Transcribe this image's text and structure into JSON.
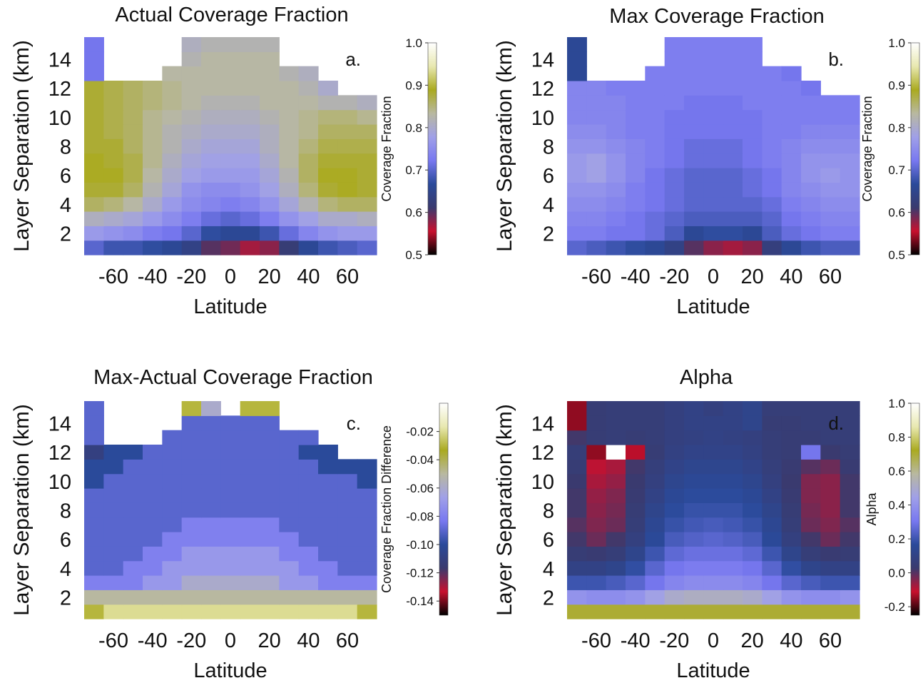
{
  "figure": {
    "ylabel": "Layer Separation (km)",
    "xlabel": "Latitude",
    "xticks": [
      "-60",
      "-40",
      "-20",
      "0",
      "20",
      "40",
      "60"
    ],
    "yticks": [
      "2",
      "4",
      "6",
      "8",
      "10",
      "12",
      "14"
    ]
  },
  "colors": {
    "missing": "#ffffff",
    "colormap": [
      "#000000",
      "#c8102e",
      "#3a3a6e",
      "#2a4a9a",
      "#7878f0",
      "#a0a0e8",
      "#b8b8a0",
      "#aaaa20",
      "#e8e8b0",
      "#ffffff"
    ]
  },
  "chart_data": [
    {
      "type": "heatmap",
      "panel": "a",
      "title": "Actual Coverage Fraction",
      "panel_label": "a.",
      "xlabel": "Latitude",
      "ylabel": "Layer Separation (km)",
      "colorbar_label": "Coverage Fraction",
      "colorbar_ticks": [
        "1.0",
        "0.9",
        "0.8",
        "0.7",
        "0.6",
        "0.5"
      ],
      "colorbar_range": [
        0.5,
        1.0
      ],
      "x": [
        -70,
        -60,
        -50,
        -40,
        -30,
        -20,
        -10,
        0,
        10,
        20,
        30,
        40,
        50,
        60,
        70
      ],
      "y": [
        1,
        2,
        3,
        4,
        5,
        6,
        7,
        8,
        9,
        10,
        11,
        12,
        13,
        14,
        15
      ],
      "z": [
        [
          0.7,
          0.68,
          0.68,
          0.67,
          0.66,
          0.64,
          0.6,
          0.59,
          0.57,
          0.58,
          0.62,
          0.66,
          0.68,
          0.69,
          0.7
        ],
        [
          0.77,
          0.76,
          0.75,
          0.73,
          0.72,
          0.7,
          0.67,
          0.66,
          0.66,
          0.68,
          0.71,
          0.74,
          0.76,
          0.77,
          0.77
        ],
        [
          0.81,
          0.8,
          0.79,
          0.77,
          0.75,
          0.73,
          0.71,
          0.7,
          0.71,
          0.73,
          0.76,
          0.78,
          0.8,
          0.8,
          0.81
        ],
        [
          0.86,
          0.85,
          0.83,
          0.8,
          0.77,
          0.75,
          0.74,
          0.73,
          0.74,
          0.76,
          0.79,
          0.82,
          0.85,
          0.86,
          0.86
        ],
        [
          0.88,
          0.88,
          0.86,
          0.82,
          0.79,
          0.76,
          0.75,
          0.75,
          0.76,
          0.78,
          0.81,
          0.85,
          0.88,
          0.89,
          0.88
        ],
        [
          0.89,
          0.89,
          0.87,
          0.83,
          0.8,
          0.78,
          0.77,
          0.77,
          0.77,
          0.79,
          0.82,
          0.86,
          0.89,
          0.89,
          0.88
        ],
        [
          0.89,
          0.88,
          0.87,
          0.84,
          0.81,
          0.79,
          0.78,
          0.78,
          0.78,
          0.8,
          0.83,
          0.86,
          0.88,
          0.88,
          0.88
        ],
        [
          0.88,
          0.88,
          0.86,
          0.84,
          0.82,
          0.8,
          0.79,
          0.79,
          0.79,
          0.81,
          0.83,
          0.85,
          0.87,
          0.87,
          0.87
        ],
        [
          0.88,
          0.87,
          0.86,
          0.84,
          0.82,
          0.81,
          0.8,
          0.8,
          0.8,
          0.81,
          0.83,
          0.84,
          0.86,
          0.86,
          0.86
        ],
        [
          0.88,
          0.87,
          0.86,
          0.84,
          0.83,
          0.82,
          0.81,
          0.81,
          0.81,
          0.82,
          0.83,
          0.84,
          0.85,
          0.85,
          0.84
        ],
        [
          0.88,
          0.87,
          0.86,
          0.85,
          0.84,
          0.83,
          0.82,
          0.82,
          0.82,
          0.83,
          0.83,
          0.83,
          0.82,
          0.82,
          0.81
        ],
        [
          0.88,
          0.87,
          0.86,
          0.85,
          0.84,
          0.83,
          0.83,
          0.83,
          0.83,
          0.83,
          0.83,
          0.82,
          0.8,
          null,
          null
        ],
        [
          0.72,
          null,
          null,
          null,
          0.83,
          0.83,
          0.83,
          0.83,
          0.83,
          0.83,
          0.82,
          0.81,
          null,
          null,
          null
        ],
        [
          0.72,
          null,
          null,
          null,
          null,
          0.82,
          0.83,
          0.83,
          0.83,
          0.83,
          null,
          null,
          null,
          null,
          null
        ],
        [
          0.72,
          null,
          null,
          null,
          null,
          0.81,
          0.82,
          0.82,
          0.82,
          0.82,
          null,
          null,
          null,
          null,
          null
        ]
      ]
    },
    {
      "type": "heatmap",
      "panel": "b",
      "title": "Max Coverage Fraction",
      "panel_label": "b.",
      "xlabel": "Latitude",
      "ylabel": "Layer Separation (km)",
      "colorbar_label": "Coverage Fraction",
      "colorbar_ticks": [
        "1.0",
        "0.9",
        "0.8",
        "0.7",
        "0.6",
        "0.5"
      ],
      "colorbar_range": [
        0.5,
        1.0
      ],
      "x": [
        -70,
        -60,
        -50,
        -40,
        -30,
        -20,
        -10,
        0,
        10,
        20,
        30,
        40,
        50,
        60,
        70
      ],
      "y": [
        1,
        2,
        3,
        4,
        5,
        6,
        7,
        8,
        9,
        10,
        11,
        12,
        13,
        14,
        15
      ],
      "z": [
        [
          0.7,
          0.69,
          0.68,
          0.67,
          0.66,
          0.64,
          0.6,
          0.58,
          0.57,
          0.58,
          0.63,
          0.66,
          0.68,
          0.69,
          0.69
        ],
        [
          0.73,
          0.73,
          0.72,
          0.72,
          0.71,
          0.69,
          0.66,
          0.67,
          0.67,
          0.66,
          0.69,
          0.71,
          0.72,
          0.73,
          0.73
        ],
        [
          0.74,
          0.74,
          0.73,
          0.72,
          0.71,
          0.7,
          0.69,
          0.69,
          0.69,
          0.69,
          0.7,
          0.72,
          0.73,
          0.74,
          0.74
        ],
        [
          0.75,
          0.75,
          0.74,
          0.73,
          0.72,
          0.71,
          0.7,
          0.7,
          0.7,
          0.7,
          0.71,
          0.73,
          0.74,
          0.75,
          0.75
        ],
        [
          0.76,
          0.76,
          0.75,
          0.73,
          0.72,
          0.71,
          0.7,
          0.7,
          0.7,
          0.71,
          0.72,
          0.74,
          0.75,
          0.76,
          0.76
        ],
        [
          0.77,
          0.78,
          0.76,
          0.74,
          0.72,
          0.71,
          0.7,
          0.7,
          0.7,
          0.71,
          0.72,
          0.74,
          0.76,
          0.77,
          0.76
        ],
        [
          0.77,
          0.78,
          0.76,
          0.74,
          0.73,
          0.72,
          0.71,
          0.71,
          0.71,
          0.72,
          0.73,
          0.74,
          0.76,
          0.76,
          0.76
        ],
        [
          0.76,
          0.76,
          0.75,
          0.74,
          0.73,
          0.72,
          0.71,
          0.71,
          0.71,
          0.72,
          0.73,
          0.74,
          0.75,
          0.75,
          0.75
        ],
        [
          0.75,
          0.75,
          0.74,
          0.73,
          0.73,
          0.72,
          0.72,
          0.72,
          0.72,
          0.72,
          0.73,
          0.73,
          0.74,
          0.74,
          0.74
        ],
        [
          0.74,
          0.74,
          0.74,
          0.73,
          0.73,
          0.72,
          0.72,
          0.72,
          0.72,
          0.72,
          0.73,
          0.73,
          0.73,
          0.73,
          0.73
        ],
        [
          0.74,
          0.74,
          0.74,
          0.73,
          0.73,
          0.73,
          0.72,
          0.72,
          0.72,
          0.73,
          0.73,
          0.73,
          0.73,
          0.73,
          0.73
        ],
        [
          0.74,
          0.74,
          0.73,
          0.73,
          0.73,
          0.73,
          0.73,
          0.73,
          0.73,
          0.73,
          0.73,
          0.73,
          0.72,
          null,
          null
        ],
        [
          0.66,
          null,
          null,
          null,
          0.73,
          0.73,
          0.73,
          0.73,
          0.73,
          0.73,
          0.73,
          0.72,
          null,
          null,
          null
        ],
        [
          0.66,
          null,
          null,
          null,
          null,
          0.73,
          0.73,
          0.73,
          0.73,
          0.73,
          null,
          null,
          null,
          null,
          null
        ],
        [
          0.66,
          null,
          null,
          null,
          null,
          0.73,
          0.73,
          0.73,
          0.73,
          0.73,
          null,
          null,
          null,
          null,
          null
        ]
      ]
    },
    {
      "type": "heatmap",
      "panel": "c",
      "title": "Max-Actual Coverage Fraction",
      "panel_label": "c.",
      "xlabel": "Latitude",
      "ylabel": "Layer Separation (km)",
      "colorbar_label": "Coverage Fraction Difference",
      "colorbar_ticks": [
        "-0.02",
        "-0.04",
        "-0.06",
        "-0.08",
        "-0.10",
        "-0.12",
        "-0.14"
      ],
      "colorbar_range": [
        -0.15,
        0.0
      ],
      "x": [
        -70,
        -60,
        -50,
        -40,
        -30,
        -20,
        -10,
        0,
        10,
        20,
        30,
        40,
        50,
        60,
        70
      ],
      "y": [
        1,
        2,
        3,
        4,
        5,
        6,
        7,
        8,
        9,
        10,
        11,
        12,
        13,
        14,
        15
      ],
      "z": [
        [
          -0.03,
          -0.02,
          -0.02,
          -0.02,
          -0.02,
          -0.02,
          -0.02,
          -0.02,
          -0.02,
          -0.02,
          -0.02,
          -0.02,
          -0.02,
          -0.02,
          -0.03
        ],
        [
          -0.05,
          -0.05,
          -0.05,
          -0.05,
          -0.05,
          -0.05,
          -0.05,
          -0.05,
          -0.05,
          -0.05,
          -0.05,
          -0.05,
          -0.05,
          -0.05,
          -0.05
        ],
        [
          -0.08,
          -0.08,
          -0.08,
          -0.07,
          -0.07,
          -0.06,
          -0.06,
          -0.06,
          -0.06,
          -0.06,
          -0.07,
          -0.07,
          -0.08,
          -0.08,
          -0.08
        ],
        [
          -0.09,
          -0.09,
          -0.08,
          -0.08,
          -0.07,
          -0.07,
          -0.07,
          -0.07,
          -0.07,
          -0.07,
          -0.07,
          -0.08,
          -0.08,
          -0.09,
          -0.09
        ],
        [
          -0.09,
          -0.09,
          -0.09,
          -0.08,
          -0.08,
          -0.07,
          -0.07,
          -0.07,
          -0.07,
          -0.07,
          -0.08,
          -0.08,
          -0.09,
          -0.09,
          -0.09
        ],
        [
          -0.09,
          -0.09,
          -0.09,
          -0.09,
          -0.08,
          -0.08,
          -0.08,
          -0.08,
          -0.08,
          -0.08,
          -0.08,
          -0.09,
          -0.09,
          -0.09,
          -0.09
        ],
        [
          -0.09,
          -0.09,
          -0.09,
          -0.09,
          -0.09,
          -0.08,
          -0.08,
          -0.08,
          -0.08,
          -0.08,
          -0.09,
          -0.09,
          -0.09,
          -0.09,
          -0.09
        ],
        [
          -0.09,
          -0.09,
          -0.09,
          -0.09,
          -0.09,
          -0.09,
          -0.09,
          -0.09,
          -0.09,
          -0.09,
          -0.09,
          -0.09,
          -0.09,
          -0.09,
          -0.09
        ],
        [
          -0.09,
          -0.09,
          -0.09,
          -0.09,
          -0.09,
          -0.09,
          -0.09,
          -0.09,
          -0.09,
          -0.09,
          -0.09,
          -0.09,
          -0.09,
          -0.09,
          -0.09
        ],
        [
          -0.1,
          -0.09,
          -0.09,
          -0.09,
          -0.09,
          -0.09,
          -0.09,
          -0.09,
          -0.09,
          -0.09,
          -0.09,
          -0.09,
          -0.09,
          -0.09,
          -0.1
        ],
        [
          -0.1,
          -0.1,
          -0.09,
          -0.09,
          -0.09,
          -0.09,
          -0.09,
          -0.09,
          -0.09,
          -0.09,
          -0.09,
          -0.09,
          -0.1,
          -0.1,
          -0.1
        ],
        [
          -0.11,
          -0.1,
          -0.1,
          -0.09,
          -0.09,
          -0.09,
          -0.09,
          -0.09,
          -0.09,
          -0.09,
          -0.09,
          -0.1,
          -0.1,
          null,
          null
        ],
        [
          -0.09,
          null,
          null,
          null,
          -0.09,
          -0.09,
          -0.09,
          -0.09,
          -0.09,
          -0.09,
          -0.09,
          -0.09,
          null,
          null,
          null
        ],
        [
          -0.09,
          null,
          null,
          null,
          null,
          -0.09,
          -0.09,
          -0.09,
          -0.09,
          -0.09,
          null,
          null,
          null,
          null,
          null
        ],
        [
          -0.09,
          null,
          null,
          null,
          null,
          -0.03,
          -0.06,
          null,
          -0.03,
          -0.03,
          null,
          null,
          null,
          null,
          null
        ]
      ]
    },
    {
      "type": "heatmap",
      "panel": "d",
      "title": "Alpha",
      "panel_label": "d.",
      "xlabel": "Latitude",
      "ylabel": "Layer Separation (km)",
      "colorbar_label": "Alpha",
      "colorbar_ticks": [
        "1.0",
        "0.8",
        "0.6",
        "0.4",
        "0.2",
        "0.0",
        "-0.2"
      ],
      "colorbar_range": [
        -0.25,
        1.0
      ],
      "x": [
        -70,
        -60,
        -50,
        -40,
        -30,
        -20,
        -10,
        0,
        10,
        20,
        30,
        40,
        50,
        60,
        70
      ],
      "y": [
        1,
        2,
        3,
        4,
        5,
        6,
        7,
        8,
        9,
        10,
        11,
        12,
        13,
        14,
        15
      ],
      "z": [
        [
          0.7,
          0.7,
          0.7,
          0.7,
          0.7,
          0.7,
          0.7,
          0.7,
          0.7,
          0.7,
          0.7,
          0.7,
          0.7,
          0.7,
          0.7
        ],
        [
          0.4,
          0.38,
          0.38,
          0.4,
          0.45,
          0.5,
          0.52,
          0.52,
          0.52,
          0.5,
          0.45,
          0.4,
          0.38,
          0.38,
          0.4
        ],
        [
          0.2,
          0.2,
          0.22,
          0.25,
          0.3,
          0.35,
          0.37,
          0.37,
          0.37,
          0.35,
          0.3,
          0.25,
          0.22,
          0.2,
          0.2
        ],
        [
          0.1,
          0.1,
          0.12,
          0.18,
          0.25,
          0.3,
          0.32,
          0.32,
          0.32,
          0.3,
          0.25,
          0.18,
          0.12,
          0.1,
          0.1
        ],
        [
          0.05,
          0.04,
          0.06,
          0.12,
          0.2,
          0.26,
          0.28,
          0.28,
          0.28,
          0.26,
          0.2,
          0.12,
          0.06,
          0.04,
          0.05
        ],
        [
          0.02,
          -0.02,
          0.02,
          0.08,
          0.16,
          0.22,
          0.24,
          0.25,
          0.24,
          0.22,
          0.16,
          0.08,
          0.02,
          -0.02,
          0.02
        ],
        [
          0.0,
          -0.04,
          -0.02,
          0.06,
          0.14,
          0.19,
          0.21,
          0.22,
          0.21,
          0.19,
          0.14,
          0.06,
          -0.02,
          -0.04,
          0.0
        ],
        [
          0.02,
          -0.05,
          -0.03,
          0.05,
          0.12,
          0.17,
          0.19,
          0.19,
          0.19,
          0.17,
          0.12,
          0.05,
          -0.03,
          -0.05,
          0.02
        ],
        [
          0.02,
          -0.06,
          -0.04,
          0.04,
          0.1,
          0.15,
          0.17,
          0.17,
          0.17,
          0.15,
          0.1,
          0.04,
          -0.04,
          -0.05,
          0.02
        ],
        [
          0.03,
          -0.08,
          -0.06,
          0.03,
          0.08,
          0.13,
          0.15,
          0.15,
          0.15,
          0.13,
          0.08,
          0.03,
          -0.04,
          -0.05,
          0.02
        ],
        [
          0.05,
          -0.1,
          -0.08,
          0.02,
          0.07,
          0.11,
          0.13,
          0.13,
          0.13,
          0.11,
          0.07,
          0.04,
          0.0,
          -0.02,
          0.04
        ],
        [
          0.06,
          -0.15,
          1.0,
          -0.12,
          0.05,
          0.09,
          0.11,
          0.11,
          0.11,
          0.09,
          0.06,
          0.05,
          0.3,
          0.03,
          0.05
        ],
        [
          0.02,
          0.05,
          0.06,
          0.05,
          0.06,
          0.08,
          0.09,
          0.1,
          0.09,
          0.08,
          0.06,
          0.05,
          0.05,
          0.06,
          0.06
        ],
        [
          -0.15,
          0.05,
          0.06,
          0.06,
          0.06,
          0.08,
          0.1,
          0.1,
          0.1,
          0.12,
          0.05,
          0.05,
          0.06,
          0.06,
          0.06
        ],
        [
          -0.15,
          0.05,
          0.06,
          0.06,
          0.06,
          0.08,
          0.1,
          0.08,
          0.1,
          0.12,
          0.06,
          0.06,
          0.06,
          0.06,
          0.06
        ]
      ]
    }
  ]
}
